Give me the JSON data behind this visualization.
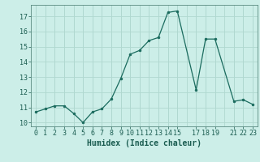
{
  "x": [
    0,
    1,
    2,
    3,
    4,
    5,
    6,
    7,
    8,
    9,
    10,
    11,
    12,
    13,
    14,
    15,
    17,
    18,
    19,
    21,
    22,
    23
  ],
  "y": [
    10.7,
    10.9,
    11.1,
    11.1,
    10.6,
    10.0,
    10.7,
    10.9,
    11.55,
    12.9,
    14.5,
    14.75,
    15.4,
    15.6,
    17.25,
    17.35,
    12.15,
    15.5,
    15.5,
    11.4,
    11.5,
    11.2
  ],
  "line_color": "#1a6b5e",
  "marker_color": "#1a6b5e",
  "bg_color": "#cceee8",
  "grid_color": "#b0d8d0",
  "xlabel": "Humidex (Indice chaleur)",
  "xlabel_fontsize": 7,
  "tick_fontsize": 6,
  "ylim": [
    9.75,
    17.75
  ],
  "xlim": [
    -0.5,
    23.5
  ],
  "yticks": [
    10,
    11,
    12,
    13,
    14,
    15,
    16,
    17
  ],
  "xticks": [
    0,
    1,
    2,
    3,
    4,
    5,
    6,
    7,
    8,
    9,
    10,
    11,
    12,
    13,
    14,
    15,
    17,
    18,
    19,
    21,
    22,
    23
  ],
  "xtick_labels": [
    "0",
    "1",
    "2",
    "3",
    "4",
    "5",
    "6",
    "7",
    "8",
    "9",
    "10",
    "11",
    "12",
    "13",
    "14",
    "15",
    "17",
    "18",
    "19",
    "21",
    "22",
    "23"
  ]
}
